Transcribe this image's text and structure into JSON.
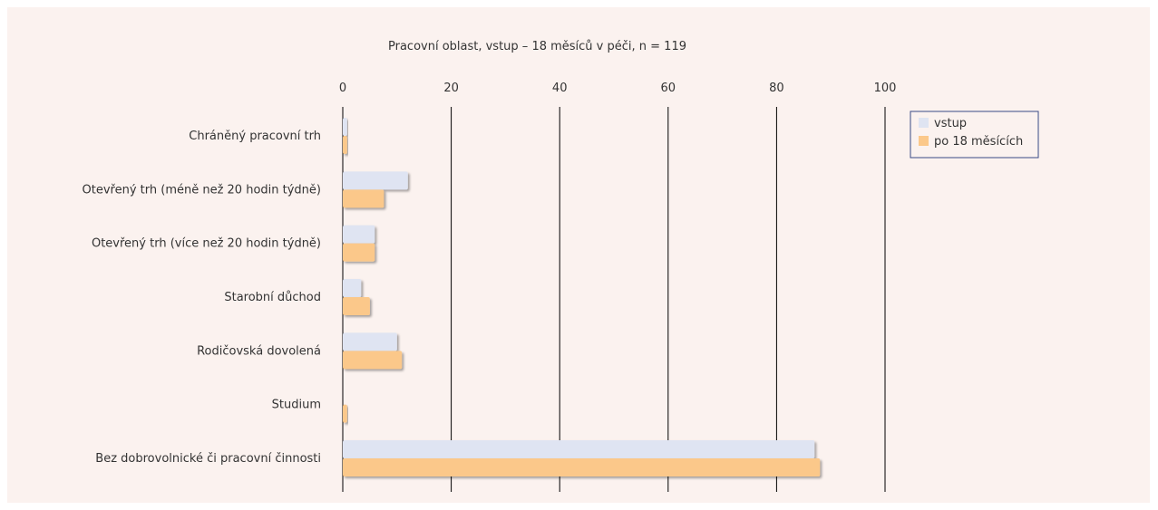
{
  "chart_data": {
    "type": "bar",
    "orientation": "horizontal",
    "title": "Pracovní oblast, vstup – 18 měsíců v péči, n = 119",
    "categories": [
      "Chráněný pracovní trh",
      "Otevřený trh (méně než 20 hodin týdně)",
      "Otevřený trh (více než 20 hodin týdně)",
      "Starobní důchod",
      "Rodičovská dovolená",
      "Studium",
      "Bez dobrovolnické či pracovní činnosti"
    ],
    "series": [
      {
        "name": "vstup",
        "color": "#dfe4f2",
        "values": [
          0.8,
          12,
          5.9,
          3.4,
          10,
          0,
          87
        ]
      },
      {
        "name": "po 18 měsících",
        "color": "#fbc88a",
        "values": [
          0.8,
          7.6,
          5.9,
          5.0,
          10.9,
          0.8,
          88
        ]
      }
    ],
    "xlim": [
      0,
      100
    ],
    "xticks": [
      "0",
      "20",
      "40",
      "60",
      "80",
      "100"
    ],
    "grid": true,
    "legend_position": "top-right"
  }
}
